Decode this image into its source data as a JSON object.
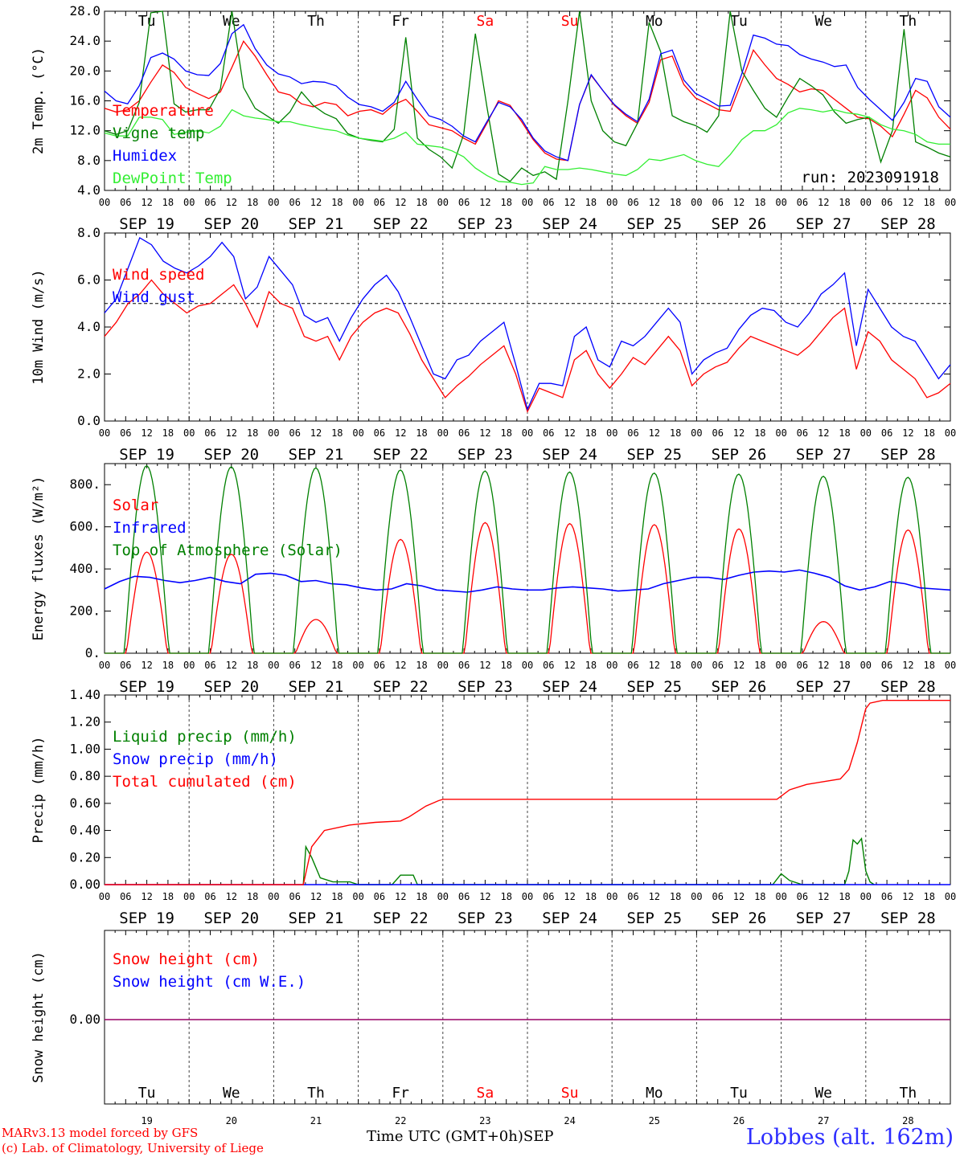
{
  "chart_data": {
    "type": "line",
    "days": [
      "19",
      "20",
      "21",
      "22",
      "23",
      "24",
      "25",
      "26",
      "27",
      "28"
    ],
    "month": "SEP",
    "weekdays": [
      "Tu",
      "We",
      "Th",
      "Fr",
      "Sa",
      "Su",
      "Mo",
      "Tu",
      "We",
      "Th"
    ],
    "weekend_color": "#ff0000",
    "hour_ticks": [
      "00",
      "06",
      "12",
      "18"
    ],
    "panels": [
      {
        "id": "temperature",
        "ylabel": "2m Temp. (°C)",
        "ylim": [
          4.0,
          28.0
        ],
        "yticks": [
          "4.0",
          "8.0",
          "12.0",
          "16.0",
          "20.0",
          "24.0",
          "28.0"
        ],
        "annotation": "run: 2023091918",
        "series": [
          {
            "name": "Temperature",
            "color": "#ff0000",
            "values": [
              15.0,
              14.5,
              14.8,
              16.0,
              18.5,
              20.8,
              19.8,
              17.8,
              17.0,
              16.3,
              17.2,
              20.5,
              24.0,
              22.0,
              19.5,
              17.2,
              16.8,
              15.6,
              15.2,
              15.8,
              15.5,
              14.0,
              14.6,
              14.8,
              14.2,
              15.5,
              16.2,
              14.6,
              12.8,
              12.4,
              12.0,
              11.0,
              10.2,
              13.0,
              16.0,
              15.4,
              13.2,
              10.8,
              9.0,
              8.2,
              8.0,
              15.5,
              19.4,
              17.4,
              15.4,
              14.0,
              13.0,
              15.8,
              21.5,
              22.0,
              18.2,
              16.4,
              15.6,
              14.8,
              14.6,
              18.6,
              22.8,
              20.8,
              19.0,
              18.2,
              17.2,
              17.6,
              17.4,
              16.2,
              15.0,
              13.8,
              13.6,
              12.6,
              11.2,
              14.2,
              17.4,
              16.4,
              13.8,
              12.2
            ]
          },
          {
            "name": "Vigne temp",
            "color": "#008000",
            "values": [
              12.0,
              11.5,
              12.0,
              15.8,
              27.8,
              28.0,
              15.6,
              14.5,
              14.8,
              14.8,
              17.6,
              28.0,
              17.8,
              15.0,
              14.0,
              13.0,
              14.5,
              17.2,
              15.4,
              14.3,
              13.6,
              11.6,
              11.0,
              10.7,
              10.5,
              12.2,
              24.5,
              11.0,
              9.5,
              8.5,
              7.0,
              11.5,
              25.0,
              15.2,
              6.2,
              5.2,
              7.0,
              6.0,
              6.5,
              5.5,
              16.0,
              28.0,
              16.0,
              12.0,
              10.5,
              10.0,
              13.0,
              26.5,
              22.6,
              14.0,
              13.2,
              12.7,
              11.8,
              14.0,
              28.0,
              20.0,
              17.4,
              15.0,
              13.8,
              16.5,
              19.0,
              18.0,
              16.8,
              14.5,
              13.0,
              13.5,
              13.8,
              7.8,
              12.0,
              25.6,
              10.5,
              9.8,
              9.0,
              8.5
            ]
          },
          {
            "name": "Humidex",
            "color": "#0000ff",
            "values": [
              17.3,
              16.0,
              15.6,
              18.0,
              21.8,
              22.4,
              21.6,
              20.0,
              19.5,
              19.4,
              21.0,
              25.0,
              26.2,
              23.0,
              20.8,
              19.6,
              19.2,
              18.3,
              18.6,
              18.5,
              18.0,
              16.5,
              15.5,
              15.2,
              14.6,
              15.8,
              18.6,
              16.2,
              14.0,
              13.5,
              12.6,
              11.3,
              10.5,
              13.2,
              15.8,
              15.2,
              13.5,
              11.0,
              9.3,
              8.5,
              8.0,
              15.5,
              19.5,
              17.4,
              15.5,
              14.2,
              13.2,
              16.2,
              22.3,
              22.8,
              18.8,
              17.0,
              16.2,
              15.3,
              15.4,
              19.6,
              24.8,
              24.4,
              23.6,
              23.4,
              22.2,
              21.6,
              21.2,
              20.6,
              20.8,
              17.8,
              16.2,
              14.8,
              13.4,
              15.8,
              19.0,
              18.6,
              15.2,
              13.8
            ]
          },
          {
            "name": "DewPoint Temp",
            "color": "#33ee33",
            "values": [
              11.7,
              11.3,
              11.3,
              13.8,
              13.8,
              13.5,
              11.5,
              11.8,
              12.0,
              11.7,
              12.6,
              14.8,
              14.0,
              13.7,
              13.5,
              13.2,
              13.2,
              12.8,
              12.5,
              12.2,
              12.0,
              11.4,
              11.0,
              10.8,
              10.6,
              11.0,
              11.8,
              10.2,
              10.0,
              9.8,
              9.3,
              8.5,
              7.0,
              6.0,
              5.2,
              5.1,
              4.8,
              5.0,
              7.2,
              6.8,
              6.8,
              7.0,
              6.8,
              6.5,
              6.2,
              6.0,
              6.8,
              8.2,
              8.0,
              8.4,
              8.8,
              8.0,
              7.5,
              7.2,
              8.8,
              10.8,
              12.0,
              12.0,
              12.8,
              14.4,
              15.0,
              14.8,
              14.5,
              14.8,
              14.4,
              14.2,
              13.8,
              12.8,
              12.2,
              12.0,
              11.5,
              10.5,
              10.2,
              10.2
            ]
          }
        ]
      },
      {
        "id": "wind",
        "ylabel": "10m Wind (m/s)",
        "ylim": [
          0.0,
          8.0
        ],
        "yticks": [
          "0.0",
          "2.0",
          "4.0",
          "6.0",
          "8.0"
        ],
        "reference_line": 5.0,
        "series": [
          {
            "name": "Wind speed",
            "color": "#ff0000",
            "values": [
              3.6,
              4.2,
              5.0,
              5.4,
              6.0,
              5.4,
              5.0,
              4.6,
              4.9,
              5.0,
              5.4,
              5.8,
              5.0,
              4.0,
              5.5,
              5.0,
              4.8,
              3.6,
              3.4,
              3.6,
              2.6,
              3.6,
              4.2,
              4.6,
              4.8,
              4.6,
              3.7,
              2.6,
              1.8,
              1.0,
              1.5,
              1.9,
              2.4,
              2.8,
              3.2,
              2.0,
              0.4,
              1.4,
              1.2,
              1.0,
              2.6,
              3.0,
              2.0,
              1.4,
              2.0,
              2.7,
              2.4,
              3.0,
              3.6,
              3.0,
              1.5,
              2.0,
              2.3,
              2.5,
              3.1,
              3.6,
              3.4,
              3.2,
              3.0,
              2.8,
              3.2,
              3.8,
              4.4,
              4.8,
              2.2,
              3.8,
              3.4,
              2.6,
              2.2,
              1.8,
              1.0,
              1.2,
              1.6
            ]
          },
          {
            "name": "Wind gust",
            "color": "#0000ff",
            "values": [
              4.6,
              5.2,
              6.5,
              7.8,
              7.5,
              6.8,
              6.5,
              6.3,
              6.6,
              7.0,
              7.6,
              7.0,
              5.2,
              5.7,
              7.0,
              6.4,
              5.8,
              4.5,
              4.2,
              4.4,
              3.4,
              4.4,
              5.2,
              5.8,
              6.2,
              5.5,
              4.4,
              3.2,
              2.0,
              1.8,
              2.6,
              2.8,
              3.4,
              3.8,
              4.2,
              2.4,
              0.5,
              1.6,
              1.6,
              1.5,
              3.6,
              4.0,
              2.6,
              2.3,
              3.4,
              3.2,
              3.6,
              4.2,
              4.8,
              4.2,
              2.0,
              2.6,
              2.9,
              3.1,
              3.9,
              4.5,
              4.8,
              4.7,
              4.2,
              4.0,
              4.6,
              5.4,
              5.8,
              6.3,
              3.2,
              5.6,
              4.8,
              4.0,
              3.6,
              3.4,
              2.6,
              1.8,
              2.4
            ]
          }
        ]
      },
      {
        "id": "energy",
        "ylabel": "Energy fluxes (W/m²)",
        "ylim": [
          0,
          900
        ],
        "yticks": [
          "0.",
          "200.",
          "400.",
          "600.",
          "800."
        ],
        "series": [
          {
            "name": "Solar",
            "color": "#ff0000",
            "day_peaks": [
              480,
              470,
              160,
              540,
              620,
              615,
              610,
              590,
              150,
              585
            ]
          },
          {
            "name": "Infrared",
            "color": "#0000ff",
            "values": [
              305,
              340,
              365,
              360,
              345,
              335,
              345,
              360,
              340,
              330,
              375,
              380,
              370,
              340,
              345,
              330,
              325,
              310,
              300,
              305,
              330,
              320,
              300,
              295,
              290,
              300,
              315,
              305,
              300,
              300,
              310,
              315,
              310,
              305,
              295,
              300,
              305,
              330,
              345,
              360,
              360,
              350,
              370,
              385,
              390,
              385,
              395,
              380,
              360,
              320,
              300,
              315,
              340,
              330,
              310,
              305,
              300
            ]
          },
          {
            "name": "Top of Atmosphere (Solar)",
            "color": "#008000",
            "day_peaks": [
              890,
              885,
              880,
              870,
              865,
              860,
              855,
              850,
              840,
              835
            ]
          }
        ]
      },
      {
        "id": "precip",
        "ylabel": "Precip (mm/h)",
        "ylim": [
          0.0,
          1.4
        ],
        "yticks": [
          "0.00",
          "0.20",
          "0.40",
          "0.60",
          "0.80",
          "1.00",
          "1.20",
          "1.40"
        ],
        "series": [
          {
            "name": "Liquid precip (mm/h)",
            "color": "#008000",
            "points": [
              [
                2.35,
                0.0
              ],
              [
                2.38,
                0.28
              ],
              [
                2.45,
                0.2
              ],
              [
                2.55,
                0.05
              ],
              [
                2.7,
                0.02
              ],
              [
                2.9,
                0.02
              ],
              [
                3.0,
                0.0
              ],
              [
                3.4,
                0.0
              ],
              [
                3.5,
                0.07
              ],
              [
                3.65,
                0.07
              ],
              [
                3.7,
                0.0
              ],
              [
                7.9,
                0.0
              ],
              [
                8.0,
                0.08
              ],
              [
                8.1,
                0.03
              ],
              [
                8.25,
                0.0
              ],
              [
                8.75,
                0.0
              ],
              [
                8.8,
                0.1
              ],
              [
                8.85,
                0.33
              ],
              [
                8.9,
                0.3
              ],
              [
                8.95,
                0.34
              ],
              [
                9.0,
                0.1
              ],
              [
                9.05,
                0.02
              ],
              [
                9.1,
                0.0
              ]
            ]
          },
          {
            "name": "Snow precip (mm/h)",
            "color": "#0000ff",
            "points": [
              [
                0,
                0
              ],
              [
                10,
                0
              ]
            ]
          },
          {
            "name": "Total cumulated (cm)",
            "color": "#ff0000",
            "points": [
              [
                0,
                0
              ],
              [
                2.35,
                0
              ],
              [
                2.45,
                0.28
              ],
              [
                2.6,
                0.4
              ],
              [
                2.9,
                0.44
              ],
              [
                3.2,
                0.46
              ],
              [
                3.5,
                0.47
              ],
              [
                3.6,
                0.5
              ],
              [
                3.8,
                0.58
              ],
              [
                3.95,
                0.62
              ],
              [
                4.0,
                0.63
              ],
              [
                7.95,
                0.63
              ],
              [
                8.1,
                0.7
              ],
              [
                8.3,
                0.74
              ],
              [
                8.7,
                0.78
              ],
              [
                8.8,
                0.85
              ],
              [
                8.9,
                1.05
              ],
              [
                9.0,
                1.3
              ],
              [
                9.05,
                1.34
              ],
              [
                9.2,
                1.36
              ],
              [
                10,
                1.36
              ]
            ]
          }
        ]
      },
      {
        "id": "snow",
        "ylabel": "Snow height (cm)",
        "yticks": [
          "0.00"
        ],
        "series": [
          {
            "name": "Snow height (cm)",
            "color": "#ff0000",
            "values": [
              0,
              0
            ]
          },
          {
            "name": "Snow height (cm W.E.)",
            "color": "#0000ff",
            "values": [
              0,
              0
            ]
          }
        ]
      }
    ],
    "xlabel_time": "Time UTC (GMT+0h)",
    "xlabel_month": "SEP"
  },
  "footer": {
    "model_line": "MARv3.13 model forced by GFS",
    "lab_line": "(c) Lab. of Climatology, University of Liege",
    "station": "Lobbes (alt. 162m)"
  }
}
